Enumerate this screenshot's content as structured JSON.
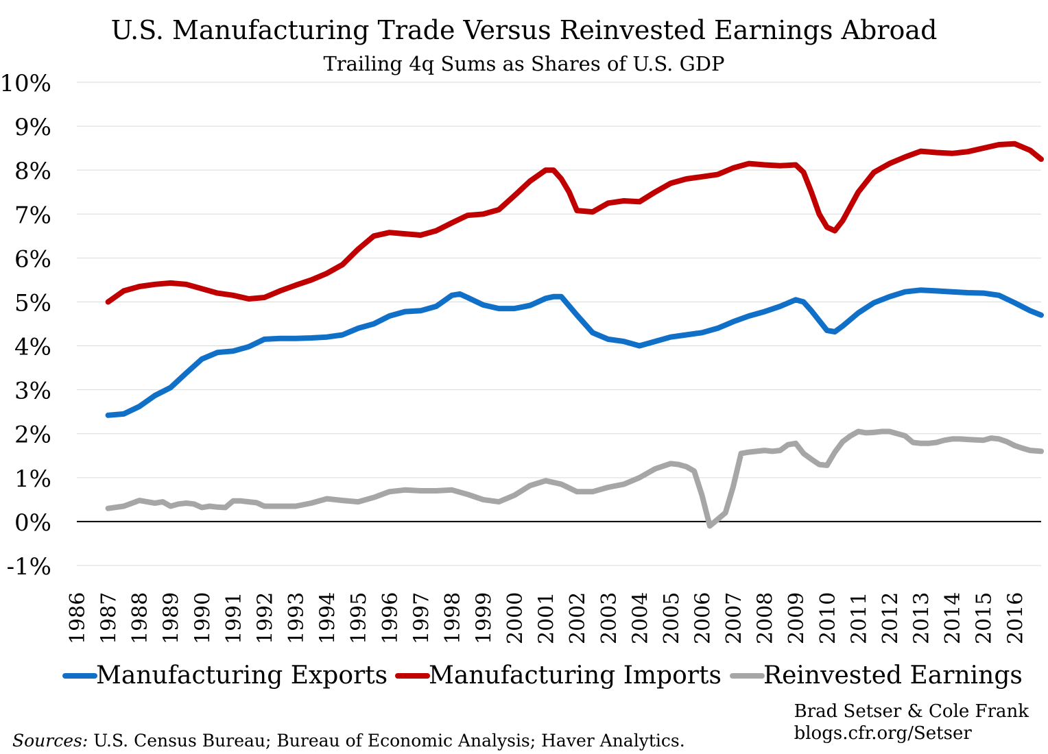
{
  "chart_data": {
    "type": "line",
    "title": "U.S. Manufacturing Trade Versus Reinvested Earnings Abroad",
    "subtitle": "Trailing 4q Sums as Shares of U.S. GDP",
    "y_ticks": [
      "10%",
      "9%",
      "8%",
      "7%",
      "6%",
      "5%",
      "4%",
      "3%",
      "2%",
      "1%",
      "0%",
      "-1%"
    ],
    "y_tick_values": [
      10,
      9,
      8,
      7,
      6,
      5,
      4,
      3,
      2,
      1,
      0,
      -1
    ],
    "ylim": [
      -1,
      10
    ],
    "x_ticks": [
      "1986",
      "1987",
      "1988",
      "1989",
      "1990",
      "1991",
      "1992",
      "1993",
      "1994",
      "1995",
      "1996",
      "1997",
      "1998",
      "1999",
      "2000",
      "2001",
      "2002",
      "2003",
      "2004",
      "2005",
      "2006",
      "2007",
      "2008",
      "2009",
      "2010",
      "2011",
      "2012",
      "2013",
      "2014",
      "2015",
      "2016"
    ],
    "xlim": [
      1986,
      2016.85
    ],
    "grid": true,
    "legend_position": "bottom",
    "series": [
      {
        "name": "Manufacturing Exports",
        "color": "#1070C8",
        "x": [
          1987.0,
          1987.5,
          1988.0,
          1988.5,
          1989.0,
          1989.5,
          1990.0,
          1990.5,
          1991.0,
          1991.5,
          1992.0,
          1992.5,
          1993.0,
          1993.5,
          1994.0,
          1994.5,
          1995.0,
          1995.5,
          1996.0,
          1996.5,
          1997.0,
          1997.5,
          1998.0,
          1998.25,
          1998.5,
          1999.0,
          1999.5,
          2000.0,
          2000.5,
          2001.0,
          2001.25,
          2001.5,
          2002.0,
          2002.5,
          2003.0,
          2003.5,
          2004.0,
          2004.5,
          2005.0,
          2005.5,
          2006.0,
          2006.5,
          2007.0,
          2007.5,
          2008.0,
          2008.5,
          2009.0,
          2009.25,
          2009.5,
          2010.0,
          2010.25,
          2010.5,
          2011.0,
          2011.5,
          2012.0,
          2012.5,
          2013.0,
          2013.5,
          2014.0,
          2014.5,
          2015.0,
          2015.5,
          2016.0,
          2016.5,
          2016.85
        ],
        "values": [
          2.42,
          2.45,
          2.62,
          2.87,
          3.05,
          3.38,
          3.7,
          3.85,
          3.88,
          3.98,
          4.15,
          4.17,
          4.17,
          4.18,
          4.2,
          4.25,
          4.4,
          4.5,
          4.68,
          4.78,
          4.8,
          4.9,
          5.15,
          5.18,
          5.1,
          4.93,
          4.85,
          4.85,
          4.92,
          5.08,
          5.12,
          5.12,
          4.7,
          4.3,
          4.15,
          4.1,
          4.0,
          4.1,
          4.2,
          4.25,
          4.3,
          4.4,
          4.55,
          4.68,
          4.78,
          4.9,
          5.05,
          5.0,
          4.8,
          4.35,
          4.32,
          4.45,
          4.75,
          4.98,
          5.12,
          5.23,
          5.27,
          5.25,
          5.23,
          5.21,
          5.2,
          5.15,
          4.98,
          4.8,
          4.7
        ]
      },
      {
        "name": "Manufacturing Imports",
        "color": "#C00000",
        "x": [
          1987.0,
          1987.5,
          1988.0,
          1988.5,
          1989.0,
          1989.5,
          1990.0,
          1990.5,
          1991.0,
          1991.5,
          1992.0,
          1992.5,
          1993.0,
          1993.5,
          1994.0,
          1994.5,
          1995.0,
          1995.5,
          1996.0,
          1996.5,
          1997.0,
          1997.5,
          1998.0,
          1998.5,
          1999.0,
          1999.5,
          2000.0,
          2000.5,
          2001.0,
          2001.25,
          2001.5,
          2001.75,
          2002.0,
          2002.5,
          2003.0,
          2003.5,
          2004.0,
          2004.5,
          2005.0,
          2005.5,
          2006.0,
          2006.5,
          2007.0,
          2007.5,
          2008.0,
          2008.5,
          2009.0,
          2009.25,
          2009.5,
          2009.75,
          2010.0,
          2010.25,
          2010.5,
          2011.0,
          2011.5,
          2012.0,
          2012.5,
          2013.0,
          2013.5,
          2014.0,
          2014.5,
          2015.0,
          2015.5,
          2016.0,
          2016.5,
          2016.85
        ],
        "values": [
          5.0,
          5.25,
          5.35,
          5.4,
          5.43,
          5.4,
          5.3,
          5.2,
          5.15,
          5.07,
          5.1,
          5.25,
          5.38,
          5.5,
          5.65,
          5.85,
          6.2,
          6.5,
          6.58,
          6.55,
          6.52,
          6.62,
          6.8,
          6.97,
          7.0,
          7.1,
          7.42,
          7.75,
          8.0,
          8.0,
          7.8,
          7.5,
          7.08,
          7.05,
          7.25,
          7.3,
          7.28,
          7.5,
          7.7,
          7.8,
          7.85,
          7.9,
          8.05,
          8.15,
          8.12,
          8.1,
          8.12,
          7.95,
          7.5,
          7.0,
          6.7,
          6.62,
          6.85,
          7.5,
          7.95,
          8.15,
          8.3,
          8.43,
          8.4,
          8.38,
          8.42,
          8.5,
          8.58,
          8.6,
          8.45,
          8.25
        ]
      },
      {
        "name": "Reinvested Earnings",
        "color": "#A6A6A6",
        "x": [
          1987.0,
          1987.5,
          1988.0,
          1988.25,
          1988.5,
          1988.75,
          1989.0,
          1989.25,
          1989.5,
          1989.75,
          1990.0,
          1990.25,
          1990.5,
          1990.75,
          1991.0,
          1991.25,
          1991.5,
          1991.75,
          1992.0,
          1992.5,
          1993.0,
          1993.5,
          1994.0,
          1994.5,
          1995.0,
          1995.5,
          1996.0,
          1996.5,
          1997.0,
          1997.5,
          1998.0,
          1998.5,
          1999.0,
          1999.5,
          2000.0,
          2000.5,
          2001.0,
          2001.5,
          2002.0,
          2002.5,
          2003.0,
          2003.5,
          2004.0,
          2004.5,
          2005.0,
          2005.25,
          2005.5,
          2005.75,
          2006.0,
          2006.25,
          2006.5,
          2006.75,
          2007.0,
          2007.25,
          2007.5,
          2007.75,
          2008.0,
          2008.25,
          2008.5,
          2008.75,
          2009.0,
          2009.25,
          2009.5,
          2009.75,
          2010.0,
          2010.25,
          2010.5,
          2010.75,
          2011.0,
          2011.25,
          2011.5,
          2011.75,
          2012.0,
          2012.25,
          2012.5,
          2012.75,
          2013.0,
          2013.25,
          2013.5,
          2013.75,
          2014.0,
          2014.25,
          2014.5,
          2014.75,
          2015.0,
          2015.25,
          2015.5,
          2015.75,
          2016.0,
          2016.25,
          2016.5,
          2016.85
        ],
        "values": [
          0.3,
          0.35,
          0.48,
          0.45,
          0.42,
          0.45,
          0.35,
          0.4,
          0.42,
          0.4,
          0.32,
          0.35,
          0.33,
          0.32,
          0.47,
          0.47,
          0.45,
          0.43,
          0.35,
          0.35,
          0.35,
          0.42,
          0.52,
          0.48,
          0.45,
          0.55,
          0.68,
          0.72,
          0.7,
          0.7,
          0.72,
          0.62,
          0.5,
          0.45,
          0.6,
          0.82,
          0.93,
          0.85,
          0.68,
          0.68,
          0.78,
          0.85,
          1.0,
          1.2,
          1.32,
          1.3,
          1.25,
          1.15,
          0.6,
          -0.1,
          0.05,
          0.2,
          0.8,
          1.55,
          1.58,
          1.6,
          1.62,
          1.6,
          1.62,
          1.75,
          1.78,
          1.55,
          1.42,
          1.3,
          1.28,
          1.58,
          1.82,
          1.95,
          2.05,
          2.02,
          2.03,
          2.05,
          2.05,
          2.0,
          1.95,
          1.8,
          1.78,
          1.78,
          1.8,
          1.85,
          1.88,
          1.88,
          1.87,
          1.86,
          1.85,
          1.9,
          1.88,
          1.82,
          1.73,
          1.67,
          1.62,
          1.6
        ]
      }
    ]
  },
  "footer": {
    "credit_line1": "Brad Setser & Cole Frank",
    "credit_line2": "blogs.cfr.org/Setser",
    "sources_lead": "Sources:",
    "sources_text": " U.S. Census Bureau; Bureau of Economic Analysis; Haver Analytics."
  }
}
